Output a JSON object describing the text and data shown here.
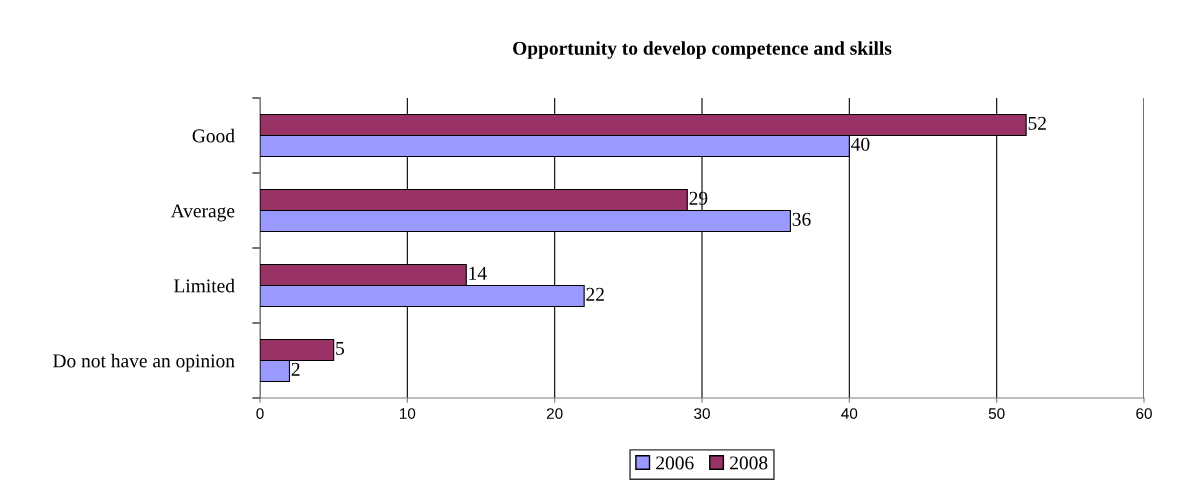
{
  "chart_data": {
    "type": "bar",
    "orientation": "horizontal",
    "title": "Opportunity to develop competence and skills",
    "categories": [
      "Good",
      "Average",
      "Limited",
      "Do not have an opinion"
    ],
    "series": [
      {
        "name": "2006",
        "color": "#9999ff",
        "values": [
          40,
          36,
          22,
          2
        ]
      },
      {
        "name": "2008",
        "color": "#993366",
        "values": [
          52,
          29,
          14,
          5
        ]
      }
    ],
    "xlim": [
      0,
      60
    ],
    "xticks": [
      0,
      10,
      20,
      30,
      40,
      50,
      60
    ],
    "grid": "x",
    "legend": "bottom",
    "data_labels": true
  }
}
